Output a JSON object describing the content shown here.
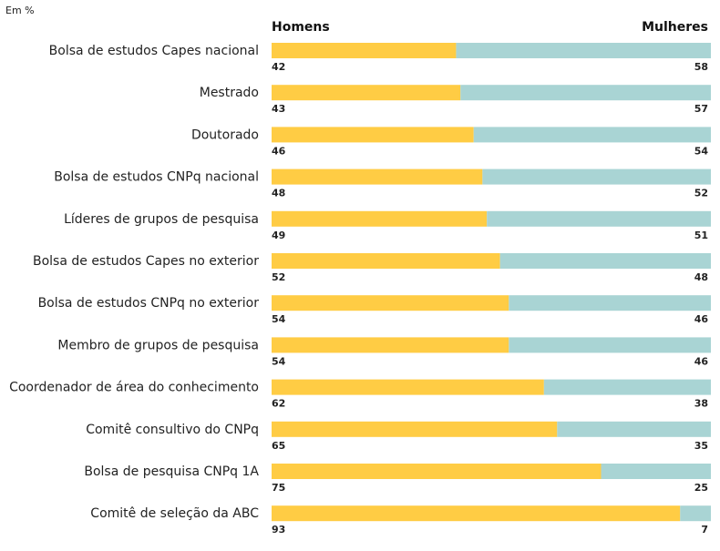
{
  "chart_data": {
    "type": "bar",
    "stacked": true,
    "orientation": "horizontal",
    "unit_label": "Em %",
    "series": [
      {
        "name": "Homens",
        "color": "#FFCC44",
        "values": [
          42,
          43,
          46,
          48,
          49,
          52,
          54,
          54,
          62,
          65,
          75,
          93
        ]
      },
      {
        "name": "Mulheres",
        "color": "#A9D4D4",
        "values": [
          58,
          57,
          54,
          52,
          51,
          48,
          46,
          46,
          38,
          35,
          25,
          7
        ]
      }
    ],
    "categories": [
      "Bolsa de estudos Capes nacional",
      "Mestrado",
      "Doutorado",
      "Bolsa de estudos CNPq nacional",
      "Líderes de grupos de pesquisa",
      "Bolsa de estudos Capes no exterior",
      "Bolsa de estudos CNPq no exterior",
      "Membro de grupos de pesquisa",
      "Coordenador de área do conhecimento",
      "Comitê consultivo do CNPq",
      "Bolsa de pesquisa CNPq 1A",
      "Comitê de seleção da ABC"
    ],
    "xlim": [
      0,
      100
    ]
  }
}
